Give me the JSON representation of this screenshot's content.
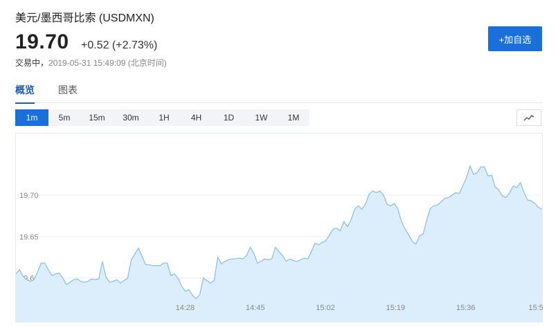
{
  "header": {
    "title": "美元/墨西哥比索 (USDMXN)",
    "price": "19.70",
    "change": "+0.52 (+2.73%)",
    "status_prefix": "交易中，",
    "timestamp": "2019-05-31 15:49:09 (北京时间)",
    "add_button": "+加自选"
  },
  "tabs": [
    {
      "label": "概览",
      "active": true
    },
    {
      "label": "图表",
      "active": false
    }
  ],
  "timeframes": [
    {
      "label": "1m",
      "active": true
    },
    {
      "label": "5m",
      "active": false
    },
    {
      "label": "15m",
      "active": false
    },
    {
      "label": "30m",
      "active": false
    },
    {
      "label": "1H",
      "active": false
    },
    {
      "label": "4H",
      "active": false
    },
    {
      "label": "1D",
      "active": false
    },
    {
      "label": "1W",
      "active": false
    },
    {
      "label": "1M",
      "active": false
    }
  ],
  "chart_type_icon": "line-chart-icon",
  "colors": {
    "accent": "#1a6fd8",
    "line": "#8ec0ee",
    "fill": "#dcedfb",
    "grid": "#eef1f5"
  },
  "chart_data": {
    "type": "area",
    "title": "",
    "xlabel": "",
    "ylabel": "",
    "ylim": [
      19.568,
      19.775
    ],
    "y_ticks": [
      "19.60",
      "19.65",
      "19.70"
    ],
    "x_ticks": [
      "14:28",
      "14:45",
      "15:02",
      "15:19",
      "15:36",
      "15:5"
    ],
    "series": [
      {
        "values": [
          19.605,
          19.61,
          19.602,
          19.598,
          19.596,
          19.598,
          19.607,
          19.618,
          19.618,
          19.61,
          19.603,
          19.605,
          19.606,
          19.6,
          19.592,
          19.595,
          19.598,
          19.599,
          19.596,
          19.595,
          19.596,
          19.599,
          19.598,
          19.599,
          19.62,
          19.601,
          19.595,
          19.596,
          19.598,
          19.594,
          19.597,
          19.6,
          19.622,
          19.629,
          19.636,
          19.626,
          19.616,
          19.616,
          19.615,
          19.615,
          19.615,
          19.618,
          19.618,
          19.603,
          19.605,
          19.6,
          19.59,
          19.584,
          19.586,
          19.579,
          19.575,
          19.58,
          19.6,
          19.597,
          19.594,
          19.597,
          19.625,
          19.617,
          19.62,
          19.622,
          19.623,
          19.623,
          19.624,
          19.623,
          19.627,
          19.637,
          19.63,
          19.618,
          19.62,
          19.623,
          19.622,
          19.623,
          19.637,
          19.632,
          19.627,
          19.62,
          19.623,
          19.621,
          19.62,
          19.622,
          19.624,
          19.623,
          19.632,
          19.642,
          19.64,
          19.643,
          19.645,
          19.652,
          19.659,
          19.66,
          19.657,
          19.668,
          19.662,
          19.67,
          19.683,
          19.687,
          19.683,
          19.689,
          19.701,
          19.705,
          19.703,
          19.705,
          19.7,
          19.689,
          19.687,
          19.69,
          19.683,
          19.668,
          19.659,
          19.652,
          19.644,
          19.641,
          19.651,
          19.653,
          19.67,
          19.684,
          19.687,
          19.688,
          19.692,
          19.696,
          19.697,
          19.7,
          19.703,
          19.702,
          19.711,
          19.721,
          19.735,
          19.725,
          19.727,
          19.734,
          19.734,
          19.723,
          19.724,
          19.71,
          19.706,
          19.699,
          19.697,
          19.703,
          19.711,
          19.709,
          19.715,
          19.703,
          19.694,
          19.693,
          19.69,
          19.685,
          19.683
        ]
      }
    ]
  }
}
